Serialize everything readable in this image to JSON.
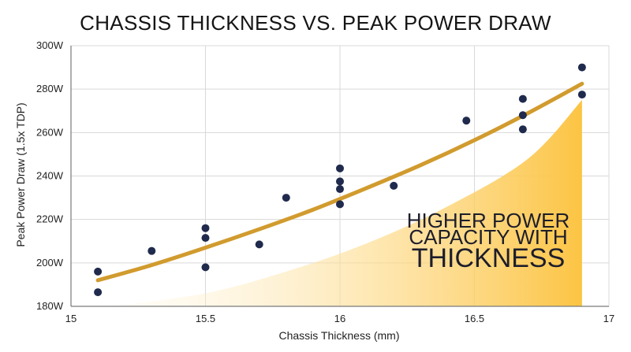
{
  "chart_data": {
    "type": "scatter",
    "title": "CHASSIS THICKNESS VS. PEAK POWER DRAW",
    "xlabel": "Chassis Thickness (mm)",
    "ylabel": "Peak Power Draw (1.5x TDP)",
    "xlim": [
      15,
      17
    ],
    "ylim": [
      180,
      300
    ],
    "x_ticks": [
      15,
      15.5,
      16,
      16.5,
      17
    ],
    "x_tick_labels": [
      "15",
      "15.5",
      "16",
      "16.5",
      "17"
    ],
    "y_ticks": [
      180,
      200,
      220,
      240,
      260,
      280,
      300
    ],
    "y_tick_labels": [
      "180W",
      "200W",
      "220W",
      "240W",
      "260W",
      "280W",
      "300W"
    ],
    "grid": true,
    "points": [
      {
        "x": 15.1,
        "y": 196
      },
      {
        "x": 15.1,
        "y": 186.5
      },
      {
        "x": 15.3,
        "y": 205.5
      },
      {
        "x": 15.5,
        "y": 216
      },
      {
        "x": 15.5,
        "y": 211.5
      },
      {
        "x": 15.5,
        "y": 198
      },
      {
        "x": 15.7,
        "y": 208.5
      },
      {
        "x": 15.8,
        "y": 230
      },
      {
        "x": 16.0,
        "y": 243.5
      },
      {
        "x": 16.0,
        "y": 237.5
      },
      {
        "x": 16.0,
        "y": 234
      },
      {
        "x": 16.0,
        "y": 227
      },
      {
        "x": 16.2,
        "y": 235.5
      },
      {
        "x": 16.47,
        "y": 265.5
      },
      {
        "x": 16.68,
        "y": 275.5
      },
      {
        "x": 16.68,
        "y": 268
      },
      {
        "x": 16.68,
        "y": 261.5
      },
      {
        "x": 16.9,
        "y": 290
      },
      {
        "x": 16.9,
        "y": 277.5
      }
    ],
    "trendline": [
      {
        "x": 15.1,
        "y": 192
      },
      {
        "x": 15.3,
        "y": 199
      },
      {
        "x": 15.5,
        "y": 207
      },
      {
        "x": 15.7,
        "y": 215.5
      },
      {
        "x": 15.9,
        "y": 224.5
      },
      {
        "x": 16.1,
        "y": 234.5
      },
      {
        "x": 16.3,
        "y": 245
      },
      {
        "x": 16.5,
        "y": 256.5
      },
      {
        "x": 16.7,
        "y": 269
      },
      {
        "x": 16.9,
        "y": 282.5
      }
    ],
    "annotation": {
      "lines": [
        "HIGHER POWER",
        "CAPACITY WITH",
        "THICKNESS"
      ]
    },
    "colors": {
      "points": "#1f2a4d",
      "trendline": "#d19b2e",
      "area_start": "#fff6e0",
      "area_end": "#fcc443",
      "grid": "#d9d9d9",
      "axis": "#7a7a7a"
    }
  }
}
